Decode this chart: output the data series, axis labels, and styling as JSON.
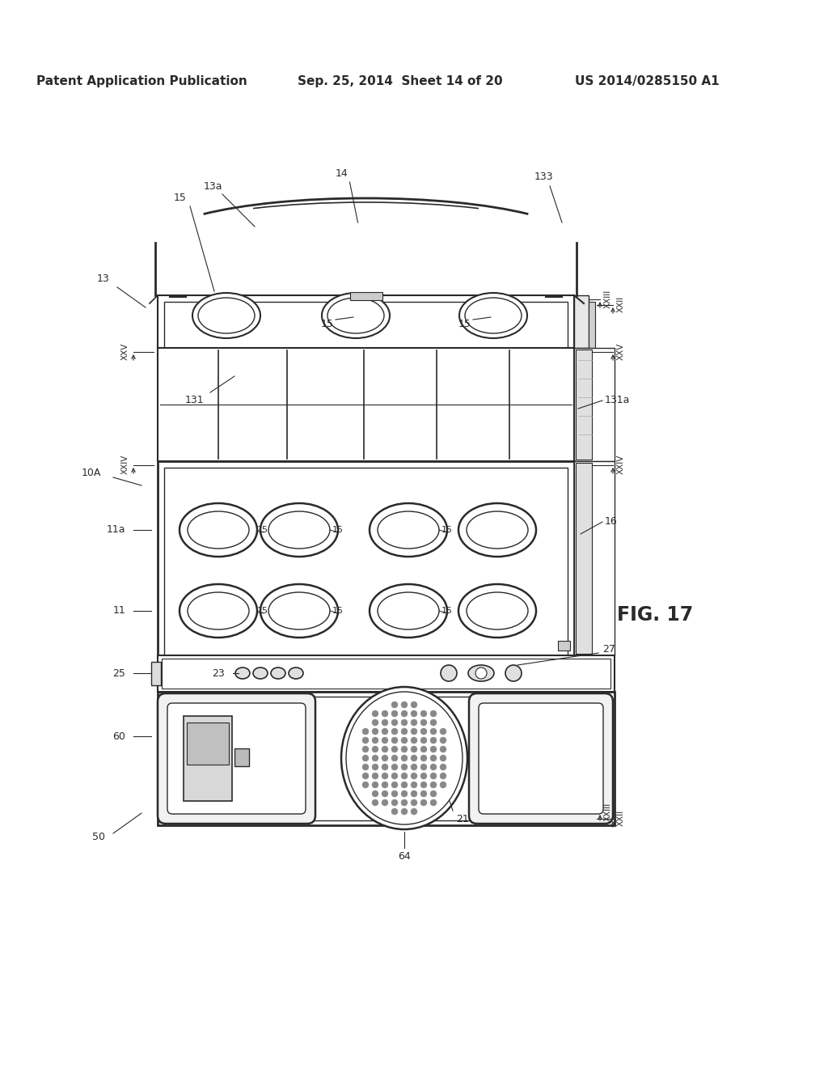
{
  "header_left": "Patent Application Publication",
  "header_mid": "Sep. 25, 2014  Sheet 14 of 20",
  "header_right": "US 2014/0285150 A1",
  "fig_label": "FIG. 17",
  "background_color": "#ffffff",
  "line_color": "#2a2a2a",
  "gray_light": "#cccccc",
  "gray_medium": "#999999",
  "gray_dark": "#666666"
}
